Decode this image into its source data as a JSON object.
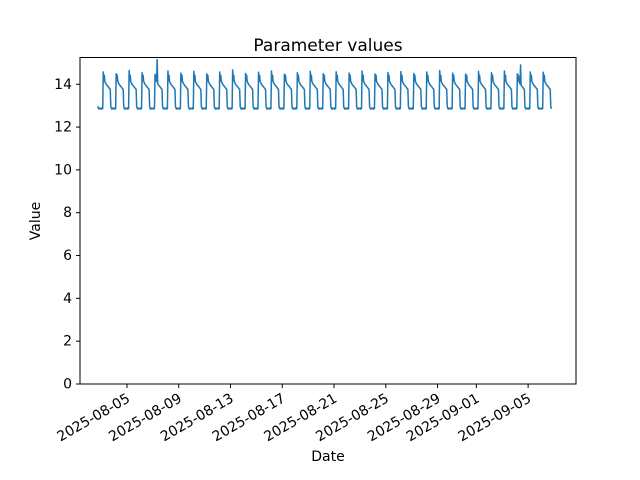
{
  "chart_data": {
    "type": "line",
    "title": "Parameter values",
    "xlabel": "Date",
    "ylabel": "Value",
    "background_color": "#ffffff",
    "line_color": "#1f77b4",
    "axis_color": "#000000",
    "grid": false,
    "legend": false,
    "ylim": [
      0,
      15.25
    ],
    "xlim_days_since_2025_08_01": [
      0.37,
      38.7
    ],
    "y_ticks": [
      0,
      2,
      4,
      6,
      8,
      10,
      12,
      14
    ],
    "x_ticks": [
      {
        "day": 4,
        "label": "2025-08-05"
      },
      {
        "day": 8,
        "label": "2025-08-09"
      },
      {
        "day": 12,
        "label": "2025-08-13"
      },
      {
        "day": 16,
        "label": "2025-08-17"
      },
      {
        "day": 20,
        "label": "2025-08-21"
      },
      {
        "day": 24,
        "label": "2025-08-25"
      },
      {
        "day": 28,
        "label": "2025-08-29"
      },
      {
        "day": 31,
        "label": "2025-09-01"
      },
      {
        "day": 35,
        "label": "2025-09-05"
      }
    ],
    "x_tick_rotation_deg": 30,
    "series": [
      {
        "name": "parameter-values",
        "start_day": 1.75,
        "end_day": 36.8,
        "samples_per_day": 24,
        "value_low": 12.87,
        "value_plateau_range": [
          14.12,
          13.76
        ],
        "value_peak": 14.52,
        "peak_hour": 4,
        "daily_pattern": [
          12.88,
          12.84,
          12.9,
          12.86,
          14.52,
          14.18,
          14.42,
          14.12,
          14.08,
          14.02,
          13.98,
          13.95,
          13.92,
          13.89,
          13.86,
          13.82,
          13.79,
          13.76,
          12.95,
          12.88,
          12.84,
          12.89,
          12.85,
          12.87
        ],
        "peak_offsets": [
          0.05,
          -0.03,
          0.12,
          0.02,
          -0.06,
          0.1,
          0.0,
          0.08,
          -0.04,
          0.05,
          0.15,
          -0.02,
          0.04,
          0.1,
          -0.05,
          0.02,
          0.08,
          -0.03,
          0.06,
          0.0,
          0.1,
          -0.04,
          0.03,
          0.07,
          -0.02,
          0.05,
          0.12,
          0.0,
          -0.05,
          0.08,
          0.02,
          0.1,
          -0.03,
          0.05,
          0.04
        ],
        "spikes": [
          {
            "day": 6,
            "hour": 8,
            "value": 15.15
          },
          {
            "day": 34,
            "hour": 10,
            "value": 14.9
          }
        ]
      }
    ]
  }
}
